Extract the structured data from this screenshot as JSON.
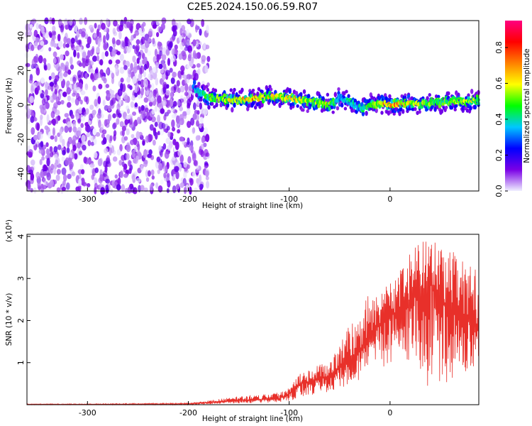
{
  "title": "C2E5.2024.150.06.59.R07",
  "chart_data": [
    {
      "type": "heatmap",
      "xlabel": "Height of straight line (km)",
      "ylabel": "Frequency (Hz)",
      "xlim": [
        -360,
        88
      ],
      "ylim": [
        -50,
        49
      ],
      "xticks": [
        -300,
        -200,
        -100,
        0
      ],
      "yticks": [
        -40,
        -20,
        0,
        20,
        40
      ],
      "colorbar": {
        "label": "Normalized spectral amplitude",
        "range": [
          0,
          0.95
        ],
        "ticks": [
          "0.0",
          "0.2",
          "0.4",
          "0.6",
          "0.8"
        ],
        "colors": [
          "#f0f0ff",
          "#7a00e6",
          "#0000ff",
          "#00c8ff",
          "#00ff00",
          "#ffff00",
          "#ff8000",
          "#ff0000",
          "#ff0080"
        ]
      },
      "noise_region": {
        "x_from": -360,
        "x_to": -180,
        "amplitude_range": [
          0.0,
          0.15
        ]
      },
      "signal_track": {
        "x": [
          -195,
          -180,
          -160,
          -140,
          -120,
          -100,
          -80,
          -60,
          -50,
          -40,
          -30,
          -20,
          -10,
          0,
          20,
          40,
          60,
          80,
          88
        ],
        "y": [
          10,
          4,
          3,
          3,
          5,
          4,
          2,
          0,
          4,
          2,
          -2,
          0,
          1,
          0,
          1,
          1,
          2,
          2,
          3
        ],
        "peak_amplitude": [
          0.3,
          0.45,
          0.55,
          0.7,
          0.55,
          0.6,
          0.5,
          0.55,
          0.3,
          0.4,
          0.35,
          0.5,
          0.6,
          0.7,
          0.55,
          0.5,
          0.45,
          0.55,
          0.5
        ]
      }
    },
    {
      "type": "line",
      "xlabel": "Height of straight line (km)",
      "ylabel": "SNR (10 * v/v)",
      "y_multiplier": "(x10⁴)",
      "xlim": [
        -360,
        88
      ],
      "ylim": [
        0,
        4.05
      ],
      "xticks": [
        -300,
        -200,
        -100,
        0
      ],
      "yticks": [
        1,
        2,
        3,
        4
      ],
      "color": "#e8302a",
      "series": [
        {
          "x": [
            -360,
            -300,
            -200,
            -180,
            -150,
            -130,
            -110,
            -100,
            -90,
            -80,
            -70,
            -60,
            -50,
            -40,
            -30,
            -20,
            -10,
            0,
            10,
            20,
            30,
            40,
            50,
            60,
            70,
            80,
            88
          ],
          "values": [
            0.01,
            0.01,
            0.02,
            0.05,
            0.1,
            0.12,
            0.15,
            0.25,
            0.5,
            0.55,
            0.6,
            0.7,
            0.9,
            1.0,
            1.3,
            1.6,
            1.9,
            2.1,
            2.3,
            2.5,
            2.6,
            2.9,
            2.5,
            2.3,
            2.2,
            2.0,
            1.9
          ],
          "envelope_max": [
            0.02,
            0.02,
            0.04,
            0.1,
            0.2,
            0.25,
            0.3,
            0.45,
            0.8,
            0.9,
            0.95,
            1.0,
            1.5,
            1.9,
            2.3,
            2.7,
            2.8,
            3.0,
            3.2,
            3.6,
            3.9,
            4.0,
            3.8,
            3.7,
            3.5,
            3.3,
            3.2
          ],
          "envelope_min": [
            0.0,
            0.0,
            0.0,
            0.01,
            0.03,
            0.04,
            0.05,
            0.08,
            0.15,
            0.2,
            0.25,
            0.3,
            0.35,
            0.5,
            0.6,
            0.7,
            0.8,
            1.0,
            1.1,
            0.9,
            0.8,
            0.2,
            0.5,
            0.4,
            0.6,
            0.8,
            0.9
          ]
        }
      ]
    }
  ]
}
